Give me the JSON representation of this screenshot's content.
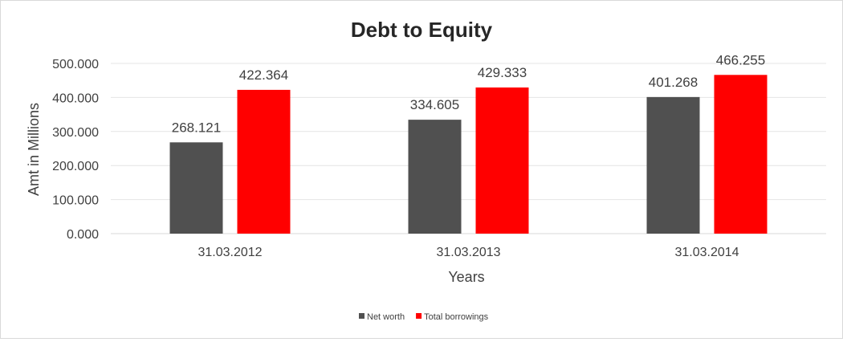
{
  "chart_data": {
    "type": "bar",
    "title": "Debt to Equity",
    "xlabel": "Years",
    "ylabel": "Amt in Millions",
    "categories": [
      "31.03.2012",
      "31.03.2013",
      "31.03.2014"
    ],
    "series": [
      {
        "name": "Net worth",
        "color": "#505050",
        "values": [
          268.121,
          334.605,
          401.268
        ],
        "labels": [
          "268.121",
          "334.605",
          "401.268"
        ]
      },
      {
        "name": "Total borrowings",
        "color": "#ff0000",
        "values": [
          422.364,
          429.333,
          466.255
        ],
        "labels": [
          "422.364",
          "429.333",
          "466.255"
        ]
      }
    ],
    "yticks": [
      0,
      100,
      200,
      300,
      400,
      500
    ],
    "ytick_labels": [
      "0.000",
      "100.000",
      "200.000",
      "300.000",
      "400.000",
      "500.000"
    ],
    "ylim": [
      0,
      500
    ],
    "grid": true,
    "legend_position": "bottom"
  }
}
